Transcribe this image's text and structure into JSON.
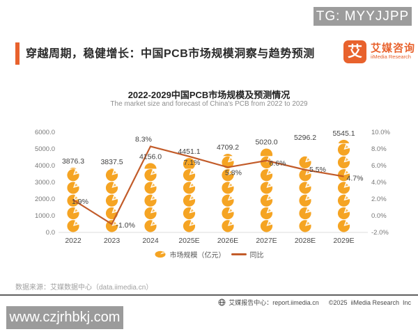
{
  "overlay": {
    "tg_badge": "TG: MYYJJPP"
  },
  "header": {
    "title": "穿越周期，稳健增长：中国PCB市场规模洞察与趋势预测",
    "brand": {
      "logo_glyph": "艾",
      "name_cn": "艾媒咨询",
      "name_en": "iiMedia Research"
    }
  },
  "chart_data": {
    "type": "bar",
    "subtype": "pictorial-bar with line overlay",
    "title": "2022-2029中国PCB市场规模及预测情况",
    "subtitle": "The market size and forecast of China's PCB from 2022 to 2029",
    "categories": [
      "2022",
      "2023",
      "2024",
      "2025E",
      "2026E",
      "2027E",
      "2028E",
      "2029E"
    ],
    "series": [
      {
        "name": "市场规模（亿元）",
        "kind": "pictorial-bar",
        "axis": "left",
        "color": "#F5A423",
        "values": [
          3876.3,
          3837.5,
          4156.0,
          4451.1,
          4709.2,
          5020.0,
          5296.2,
          5545.1
        ],
        "value_labels": [
          "3876.3",
          "3837.5",
          "4156.0",
          "4451.1",
          "4709.2",
          "5020.0",
          "5296.2",
          "5545.1"
        ]
      },
      {
        "name": "同比",
        "kind": "line",
        "axis": "right",
        "color": "#C25B29",
        "values": [
          1.9,
          -1.0,
          8.3,
          7.1,
          5.8,
          6.6,
          5.5,
          4.7
        ],
        "value_labels": [
          "1.9%",
          "-1.0%",
          "8.3%",
          "7.1%",
          "5.8%",
          "6.6%",
          "5.5%",
          "4.7%"
        ]
      }
    ],
    "left_axis": {
      "min": 0,
      "max": 6000,
      "ticks": [
        "0.0",
        "1000.0",
        "2000.0",
        "3000.0",
        "4000.0",
        "5000.0",
        "6000.0"
      ]
    },
    "right_axis": {
      "min": -2,
      "max": 10,
      "ticks": [
        "-2.0%",
        "0.0%",
        "2.0%",
        "4.0%",
        "6.0%",
        "8.0%",
        "10.0%"
      ]
    },
    "legend": [
      "市场规模（亿元）",
      "同比"
    ],
    "legend_position": "bottom",
    "grid": false
  },
  "footer": {
    "source": "数据来源：艾媒数据中心（data.iimedia.cn）",
    "report_center": "艾媒报告中心：report.iimedia.cn",
    "copyright": "©2025  iiMedia Research  Inc"
  },
  "watermark": {
    "text": "www.czjrhbkj.com"
  }
}
